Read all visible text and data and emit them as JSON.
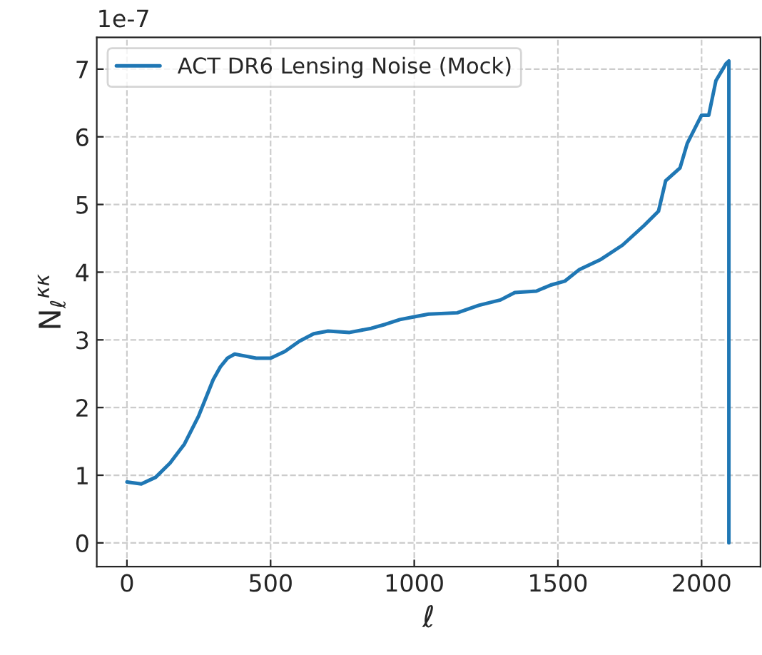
{
  "chart_data": {
    "type": "line",
    "xlabel": "ℓ",
    "ylabel": "N$_{ℓ}$$^{κκ}$",
    "annotations": [
      "1e-7"
    ],
    "x": [
      0,
      50,
      100,
      150,
      200,
      250,
      300,
      325,
      350,
      375,
      400,
      450,
      500,
      550,
      600,
      650,
      700,
      775,
      850,
      900,
      950,
      1000,
      1050,
      1150,
      1225,
      1300,
      1350,
      1425,
      1475,
      1525,
      1575,
      1650,
      1725,
      1800,
      1850,
      1875,
      1925,
      1950,
      2000,
      2025,
      2050,
      2085,
      2095,
      2095
    ],
    "series": [
      {
        "name": "ACT DR6 Lensing Noise (Mock)",
        "color": "#1f77b4",
        "values": [
          0.9,
          0.87,
          0.97,
          1.18,
          1.46,
          1.88,
          2.41,
          2.6,
          2.73,
          2.79,
          2.77,
          2.73,
          2.73,
          2.83,
          2.98,
          3.09,
          3.13,
          3.11,
          3.17,
          3.23,
          3.3,
          3.34,
          3.38,
          3.4,
          3.51,
          3.59,
          3.7,
          3.72,
          3.81,
          3.87,
          4.04,
          4.19,
          4.4,
          4.69,
          4.9,
          5.35,
          5.54,
          5.9,
          6.32,
          6.32,
          6.83,
          7.08,
          7.12,
          0
        ]
      }
    ],
    "xlim": [
      -105,
      2205
    ],
    "xticks": [
      0,
      500,
      1000,
      1500,
      2000
    ],
    "ylim": [
      -0.35,
      7.47
    ],
    "yticks": [
      0,
      1,
      2,
      3,
      4,
      5,
      6,
      7
    ],
    "grid": true,
    "legend": "top left",
    "line_style": "solid",
    "marker": "none"
  }
}
